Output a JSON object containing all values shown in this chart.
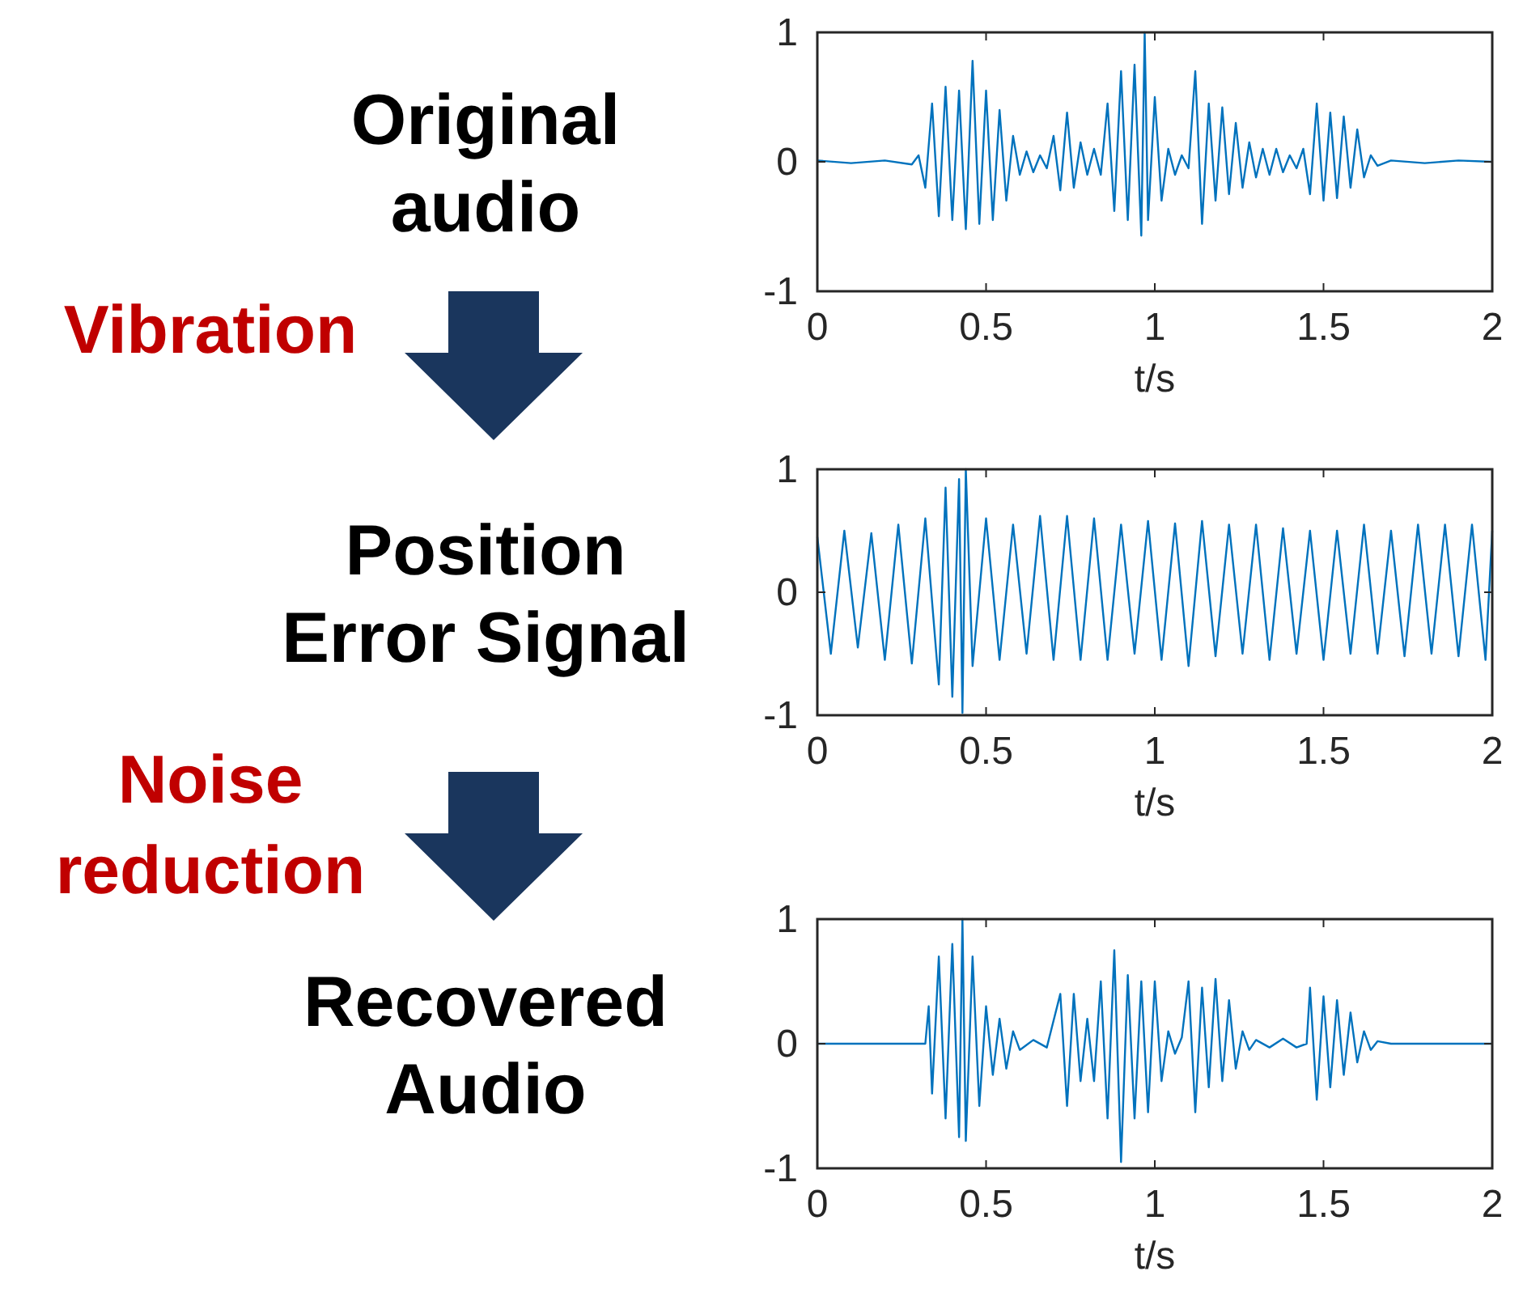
{
  "chart_data": [
    {
      "type": "line",
      "title": "Original audio",
      "xlabel": "t/s",
      "xlim": [
        0,
        2
      ],
      "xticks": [
        0,
        0.5,
        1,
        1.5,
        2
      ],
      "ylim": [
        -1,
        1
      ],
      "yticks": [
        -1,
        0,
        1
      ],
      "grid": false,
      "annotations": [
        "Vibration"
      ],
      "series": [
        {
          "color": "#0072bd",
          "x": [
            0,
            0.1,
            0.2,
            0.28,
            0.3,
            0.32,
            0.34,
            0.36,
            0.38,
            0.4,
            0.42,
            0.44,
            0.46,
            0.48,
            0.5,
            0.52,
            0.54,
            0.56,
            0.58,
            0.6,
            0.62,
            0.64,
            0.66,
            0.68,
            0.7,
            0.72,
            0.74,
            0.76,
            0.78,
            0.8,
            0.82,
            0.84,
            0.86,
            0.88,
            0.9,
            0.92,
            0.94,
            0.96,
            0.97,
            0.98,
            1.0,
            1.02,
            1.04,
            1.06,
            1.08,
            1.1,
            1.12,
            1.14,
            1.16,
            1.18,
            1.2,
            1.22,
            1.24,
            1.26,
            1.28,
            1.3,
            1.32,
            1.34,
            1.36,
            1.38,
            1.4,
            1.42,
            1.44,
            1.46,
            1.48,
            1.5,
            1.52,
            1.54,
            1.56,
            1.58,
            1.6,
            1.62,
            1.64,
            1.66,
            1.7,
            1.8,
            1.9,
            2.0
          ],
          "values": [
            0.01,
            -0.01,
            0.01,
            -0.02,
            0.05,
            -0.2,
            0.45,
            -0.42,
            0.58,
            -0.45,
            0.55,
            -0.52,
            0.78,
            -0.48,
            0.55,
            -0.45,
            0.4,
            -0.3,
            0.2,
            -0.1,
            0.08,
            -0.08,
            0.05,
            -0.05,
            0.2,
            -0.22,
            0.38,
            -0.2,
            0.15,
            -0.1,
            0.1,
            -0.1,
            0.45,
            -0.38,
            0.7,
            -0.45,
            0.75,
            -0.57,
            1.0,
            -0.45,
            0.5,
            -0.3,
            0.1,
            -0.1,
            0.05,
            -0.05,
            0.7,
            -0.48,
            0.45,
            -0.3,
            0.42,
            -0.25,
            0.3,
            -0.2,
            0.15,
            -0.12,
            0.1,
            -0.1,
            0.1,
            -0.08,
            0.05,
            -0.05,
            0.1,
            -0.25,
            0.45,
            -0.3,
            0.38,
            -0.28,
            0.35,
            -0.2,
            0.25,
            -0.12,
            0.05,
            -0.03,
            0.01,
            -0.01,
            0.01,
            0
          ]
        }
      ]
    },
    {
      "type": "line",
      "title": "Position Error Signal",
      "xlabel": "t/s",
      "xlim": [
        0,
        2
      ],
      "xticks": [
        0,
        0.5,
        1,
        1.5,
        2
      ],
      "ylim": [
        -1,
        1
      ],
      "yticks": [
        -1,
        0,
        1
      ],
      "grid": false,
      "annotations": [
        "Noise reduction"
      ],
      "series": [
        {
          "color": "#0072bd",
          "x": [
            0,
            0.04,
            0.08,
            0.12,
            0.16,
            0.2,
            0.24,
            0.28,
            0.32,
            0.36,
            0.38,
            0.4,
            0.42,
            0.43,
            0.44,
            0.46,
            0.5,
            0.54,
            0.58,
            0.62,
            0.66,
            0.7,
            0.74,
            0.78,
            0.82,
            0.86,
            0.9,
            0.94,
            0.98,
            1.02,
            1.06,
            1.1,
            1.14,
            1.18,
            1.22,
            1.26,
            1.3,
            1.34,
            1.38,
            1.42,
            1.46,
            1.5,
            1.54,
            1.58,
            1.62,
            1.66,
            1.7,
            1.74,
            1.78,
            1.82,
            1.86,
            1.9,
            1.94,
            1.98,
            2.0
          ],
          "values": [
            0.45,
            -0.5,
            0.5,
            -0.45,
            0.48,
            -0.55,
            0.55,
            -0.58,
            0.6,
            -0.75,
            0.85,
            -0.85,
            0.92,
            -0.98,
            1.0,
            -0.6,
            0.6,
            -0.55,
            0.55,
            -0.5,
            0.62,
            -0.55,
            0.62,
            -0.55,
            0.6,
            -0.55,
            0.55,
            -0.5,
            0.58,
            -0.55,
            0.56,
            -0.6,
            0.58,
            -0.52,
            0.55,
            -0.5,
            0.55,
            -0.55,
            0.52,
            -0.5,
            0.5,
            -0.55,
            0.5,
            -0.5,
            0.55,
            -0.5,
            0.5,
            -0.52,
            0.55,
            -0.5,
            0.55,
            -0.52,
            0.55,
            -0.55,
            0.5
          ]
        }
      ]
    },
    {
      "type": "line",
      "title": "Recovered Audio",
      "xlabel": "t/s",
      "xlim": [
        0,
        2
      ],
      "xticks": [
        0,
        0.5,
        1,
        1.5,
        2
      ],
      "ylim": [
        -1,
        1
      ],
      "yticks": [
        -1,
        0,
        1
      ],
      "grid": false,
      "series": [
        {
          "color": "#0072bd",
          "x": [
            0,
            0.32,
            0.33,
            0.34,
            0.36,
            0.38,
            0.4,
            0.42,
            0.43,
            0.44,
            0.46,
            0.48,
            0.5,
            0.52,
            0.54,
            0.56,
            0.58,
            0.6,
            0.64,
            0.68,
            0.72,
            0.74,
            0.76,
            0.78,
            0.8,
            0.82,
            0.84,
            0.86,
            0.88,
            0.9,
            0.92,
            0.94,
            0.96,
            0.98,
            1.0,
            1.02,
            1.04,
            1.06,
            1.08,
            1.1,
            1.12,
            1.14,
            1.16,
            1.18,
            1.2,
            1.22,
            1.24,
            1.26,
            1.28,
            1.3,
            1.34,
            1.38,
            1.42,
            1.45,
            1.46,
            1.48,
            1.5,
            1.52,
            1.54,
            1.56,
            1.58,
            1.6,
            1.62,
            1.64,
            1.66,
            1.7,
            2.0
          ],
          "values": [
            0,
            0,
            0.3,
            -0.4,
            0.7,
            -0.6,
            0.8,
            -0.75,
            1.0,
            -0.78,
            0.7,
            -0.5,
            0.3,
            -0.25,
            0.2,
            -0.2,
            0.1,
            -0.05,
            0.03,
            -0.03,
            0.4,
            -0.5,
            0.4,
            -0.3,
            0.2,
            -0.3,
            0.5,
            -0.6,
            0.75,
            -0.95,
            0.55,
            -0.6,
            0.5,
            -0.55,
            0.5,
            -0.3,
            0.1,
            -0.08,
            0.05,
            0.5,
            -0.55,
            0.45,
            -0.35,
            0.52,
            -0.3,
            0.35,
            -0.2,
            0.1,
            -0.05,
            0.03,
            -0.03,
            0.04,
            -0.03,
            0,
            0.45,
            -0.45,
            0.38,
            -0.35,
            0.35,
            -0.25,
            0.25,
            -0.15,
            0.1,
            -0.05,
            0.02,
            0,
            0
          ]
        }
      ]
    }
  ]
}
